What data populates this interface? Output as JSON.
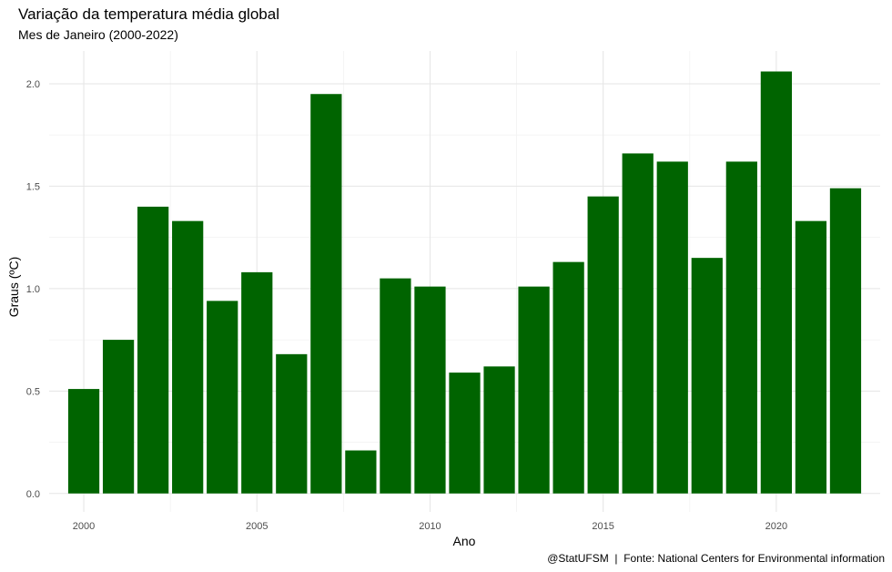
{
  "chart_data": {
    "type": "bar",
    "title": "Variação da temperatura média global",
    "subtitle": "Mes de Janeiro (2000-2022)",
    "xlabel": "Ano",
    "ylabel": "Graus (ºC)",
    "caption": "@StatUFSM  |  Fonte: National Centers for Environmental information",
    "x": [
      2000,
      2001,
      2002,
      2003,
      2004,
      2005,
      2006,
      2007,
      2008,
      2009,
      2010,
      2011,
      2012,
      2013,
      2014,
      2015,
      2016,
      2017,
      2018,
      2019,
      2020,
      2021,
      2022
    ],
    "values": [
      0.51,
      0.75,
      1.4,
      1.33,
      0.94,
      1.08,
      0.68,
      1.95,
      0.21,
      1.05,
      1.01,
      0.59,
      0.62,
      1.01,
      1.13,
      1.45,
      1.66,
      1.62,
      1.15,
      1.62,
      2.06,
      1.33,
      1.49
    ],
    "x_ticks": [
      "2000",
      "2005",
      "2010",
      "2015",
      "2020"
    ],
    "y_ticks": [
      "0.0",
      "0.5",
      "1.0",
      "1.5",
      "2.0"
    ],
    "ylim": [
      -0.09,
      2.16
    ],
    "xlim": [
      1999,
      2023
    ],
    "grid": true,
    "legend": "none",
    "bar_color": "#006400"
  }
}
